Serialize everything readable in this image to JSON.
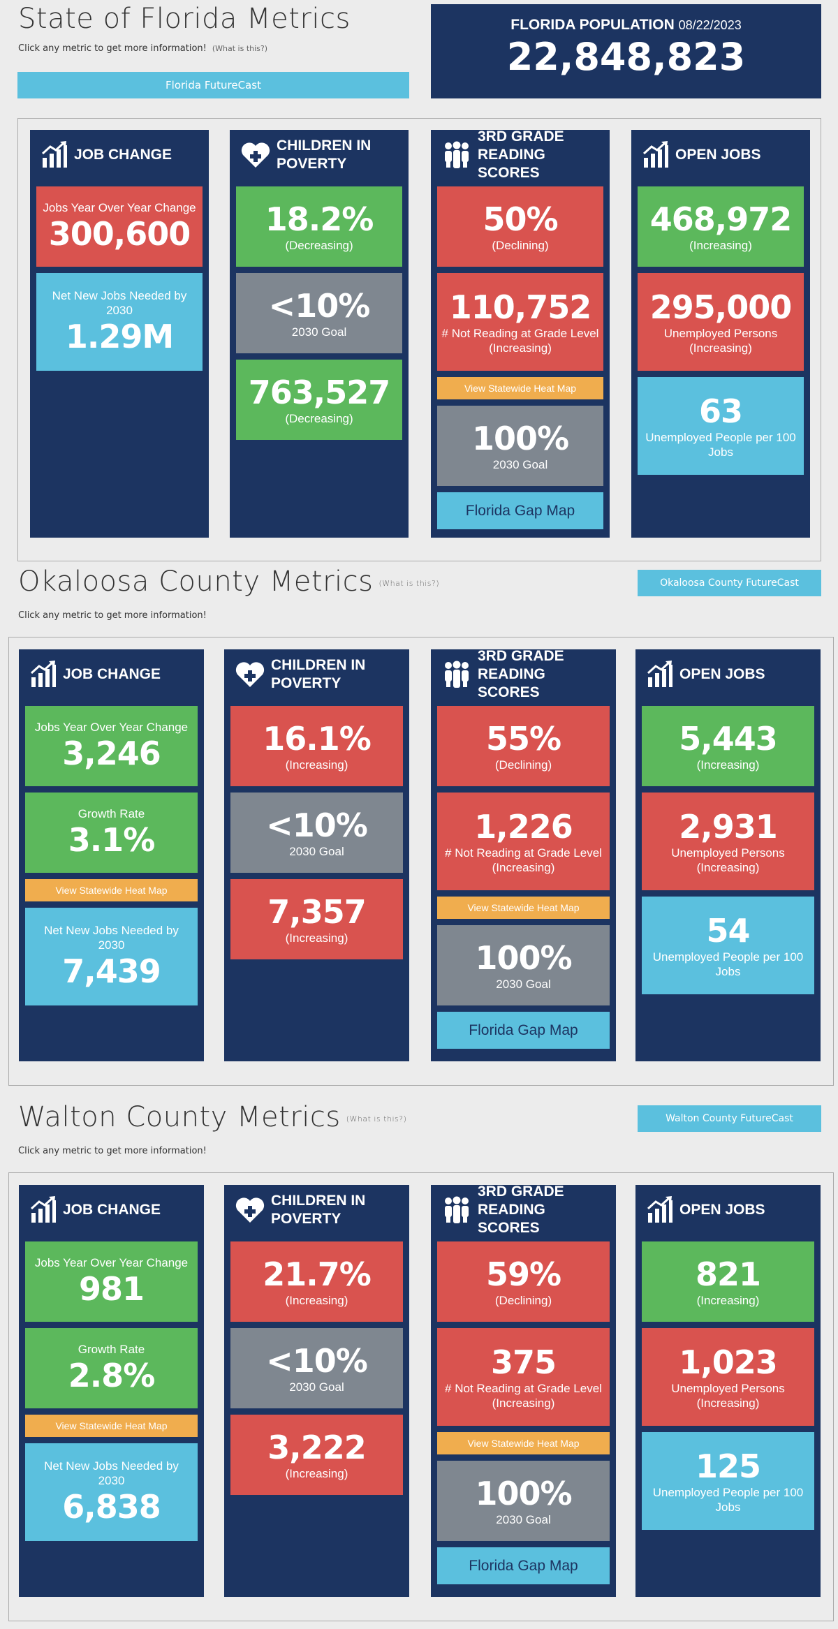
{
  "state": {
    "title": "State of Florida Metrics",
    "subtitle": "Click any metric to get more information!",
    "help": "(What is this?)",
    "button": "Florida FutureCast",
    "population": {
      "label": "FLORIDA POPULATION",
      "date": "08/22/2023",
      "value": "22,848,823"
    },
    "columns": [
      {
        "icon": "chart",
        "title": "JOB CHANGE",
        "items": [
          {
            "color": "red",
            "top": "Jobs Year Over Year Change",
            "value": "300,600"
          },
          {
            "color": "blue",
            "top": "Net New Jobs Needed by 2030",
            "value": "1.29M"
          }
        ]
      },
      {
        "icon": "heart",
        "title": "CHILDREN IN POVERTY",
        "items": [
          {
            "color": "green",
            "value": "18.2%",
            "bottom": [
              "(Decreasing)"
            ]
          },
          {
            "color": "gray",
            "value": "<10%",
            "bottom": [
              "2030 Goal"
            ]
          },
          {
            "color": "green",
            "value": "763,527",
            "bottom": [
              "(Decreasing)"
            ]
          }
        ]
      },
      {
        "icon": "people",
        "title": "3RD GRADE READING SCORES",
        "items": [
          {
            "color": "red",
            "value": "50%",
            "bottom": [
              "(Declining)"
            ]
          },
          {
            "color": "red",
            "value": "110,752",
            "bottom": [
              "# Not Reading at Grade Level",
              "(Increasing)"
            ]
          },
          {
            "color": "orange",
            "link": "View Statewide Heat Map"
          },
          {
            "color": "gray",
            "value": "100%",
            "bottom": [
              "2030 Goal"
            ]
          },
          {
            "color": "blue",
            "button": "Florida Gap Map"
          }
        ]
      },
      {
        "icon": "chart",
        "title": "OPEN JOBS",
        "items": [
          {
            "color": "green",
            "value": "468,972",
            "bottom": [
              "(Increasing)"
            ]
          },
          {
            "color": "red",
            "value": "295,000",
            "bottom": [
              "Unemployed Persons",
              "(Increasing)"
            ]
          },
          {
            "color": "blue",
            "value": "63",
            "bottom": [
              "Unemployed People per 100 Jobs"
            ]
          }
        ]
      }
    ]
  },
  "counties": [
    {
      "title": "Okaloosa County Metrics",
      "help": "(What is this?)",
      "subtitle": "Click any metric to get more information!",
      "button": "Okaloosa County FutureCast",
      "columns": [
        {
          "icon": "chart",
          "title": "JOB CHANGE",
          "items": [
            {
              "color": "green",
              "top": "Jobs Year Over Year Change",
              "value": "3,246"
            },
            {
              "color": "green",
              "top": "Growth Rate",
              "value": "3.1%"
            },
            {
              "color": "orange",
              "link": "View Statewide Heat Map"
            },
            {
              "color": "blue",
              "top": "Net New Jobs Needed by 2030",
              "value": "7,439"
            }
          ]
        },
        {
          "icon": "heart",
          "title": "CHILDREN IN POVERTY",
          "items": [
            {
              "color": "red",
              "value": "16.1%",
              "bottom": [
                "(Increasing)"
              ]
            },
            {
              "color": "gray",
              "value": "<10%",
              "bottom": [
                "2030 Goal"
              ]
            },
            {
              "color": "red",
              "value": "7,357",
              "bottom": [
                "(Increasing)"
              ]
            }
          ]
        },
        {
          "icon": "people",
          "title": "3RD GRADE READING SCORES",
          "items": [
            {
              "color": "red",
              "value": "55%",
              "bottom": [
                "(Declining)"
              ]
            },
            {
              "color": "red",
              "value": "1,226",
              "bottom": [
                "# Not Reading at Grade Level",
                "(Increasing)"
              ]
            },
            {
              "color": "orange",
              "link": "View Statewide Heat Map"
            },
            {
              "color": "gray",
              "value": "100%",
              "bottom": [
                "2030 Goal"
              ]
            },
            {
              "color": "blue",
              "button": "Florida Gap Map"
            }
          ]
        },
        {
          "icon": "chart",
          "title": "OPEN JOBS",
          "items": [
            {
              "color": "green",
              "value": "5,443",
              "bottom": [
                "(Increasing)"
              ]
            },
            {
              "color": "red",
              "value": "2,931",
              "bottom": [
                "Unemployed Persons",
                "(Increasing)"
              ]
            },
            {
              "color": "blue",
              "value": "54",
              "bottom": [
                "Unemployed People per 100 Jobs"
              ]
            }
          ]
        }
      ]
    },
    {
      "title": "Walton County Metrics",
      "help": "(What is this?)",
      "subtitle": "Click any metric to get more information!",
      "button": "Walton County FutureCast",
      "columns": [
        {
          "icon": "chart",
          "title": "JOB CHANGE",
          "items": [
            {
              "color": "green",
              "top": "Jobs Year Over Year Change",
              "value": "981"
            },
            {
              "color": "green",
              "top": "Growth Rate",
              "value": "2.8%"
            },
            {
              "color": "orange",
              "link": "View Statewide Heat Map"
            },
            {
              "color": "blue",
              "top": "Net New Jobs Needed by 2030",
              "value": "6,838"
            }
          ]
        },
        {
          "icon": "heart",
          "title": "CHILDREN IN POVERTY",
          "items": [
            {
              "color": "red",
              "value": "21.7%",
              "bottom": [
                "(Increasing)"
              ]
            },
            {
              "color": "gray",
              "value": "<10%",
              "bottom": [
                "2030 Goal"
              ]
            },
            {
              "color": "red",
              "value": "3,222",
              "bottom": [
                "(Increasing)"
              ]
            }
          ]
        },
        {
          "icon": "people",
          "title": "3RD GRADE READING SCORES",
          "items": [
            {
              "color": "red",
              "value": "59%",
              "bottom": [
                "(Declining)"
              ]
            },
            {
              "color": "red",
              "value": "375",
              "bottom": [
                "# Not Reading at Grade Level",
                "(Increasing)"
              ]
            },
            {
              "color": "orange",
              "link": "View Statewide Heat Map"
            },
            {
              "color": "gray",
              "value": "100%",
              "bottom": [
                "2030 Goal"
              ]
            },
            {
              "color": "blue",
              "button": "Florida Gap Map"
            }
          ]
        },
        {
          "icon": "chart",
          "title": "OPEN JOBS",
          "items": [
            {
              "color": "green",
              "value": "821",
              "bottom": [
                "(Increasing)"
              ]
            },
            {
              "color": "red",
              "value": "1,023",
              "bottom": [
                "Unemployed Persons",
                "(Increasing)"
              ]
            },
            {
              "color": "blue",
              "value": "125",
              "bottom": [
                "Unemployed People per 100 Jobs"
              ]
            }
          ]
        }
      ]
    }
  ]
}
